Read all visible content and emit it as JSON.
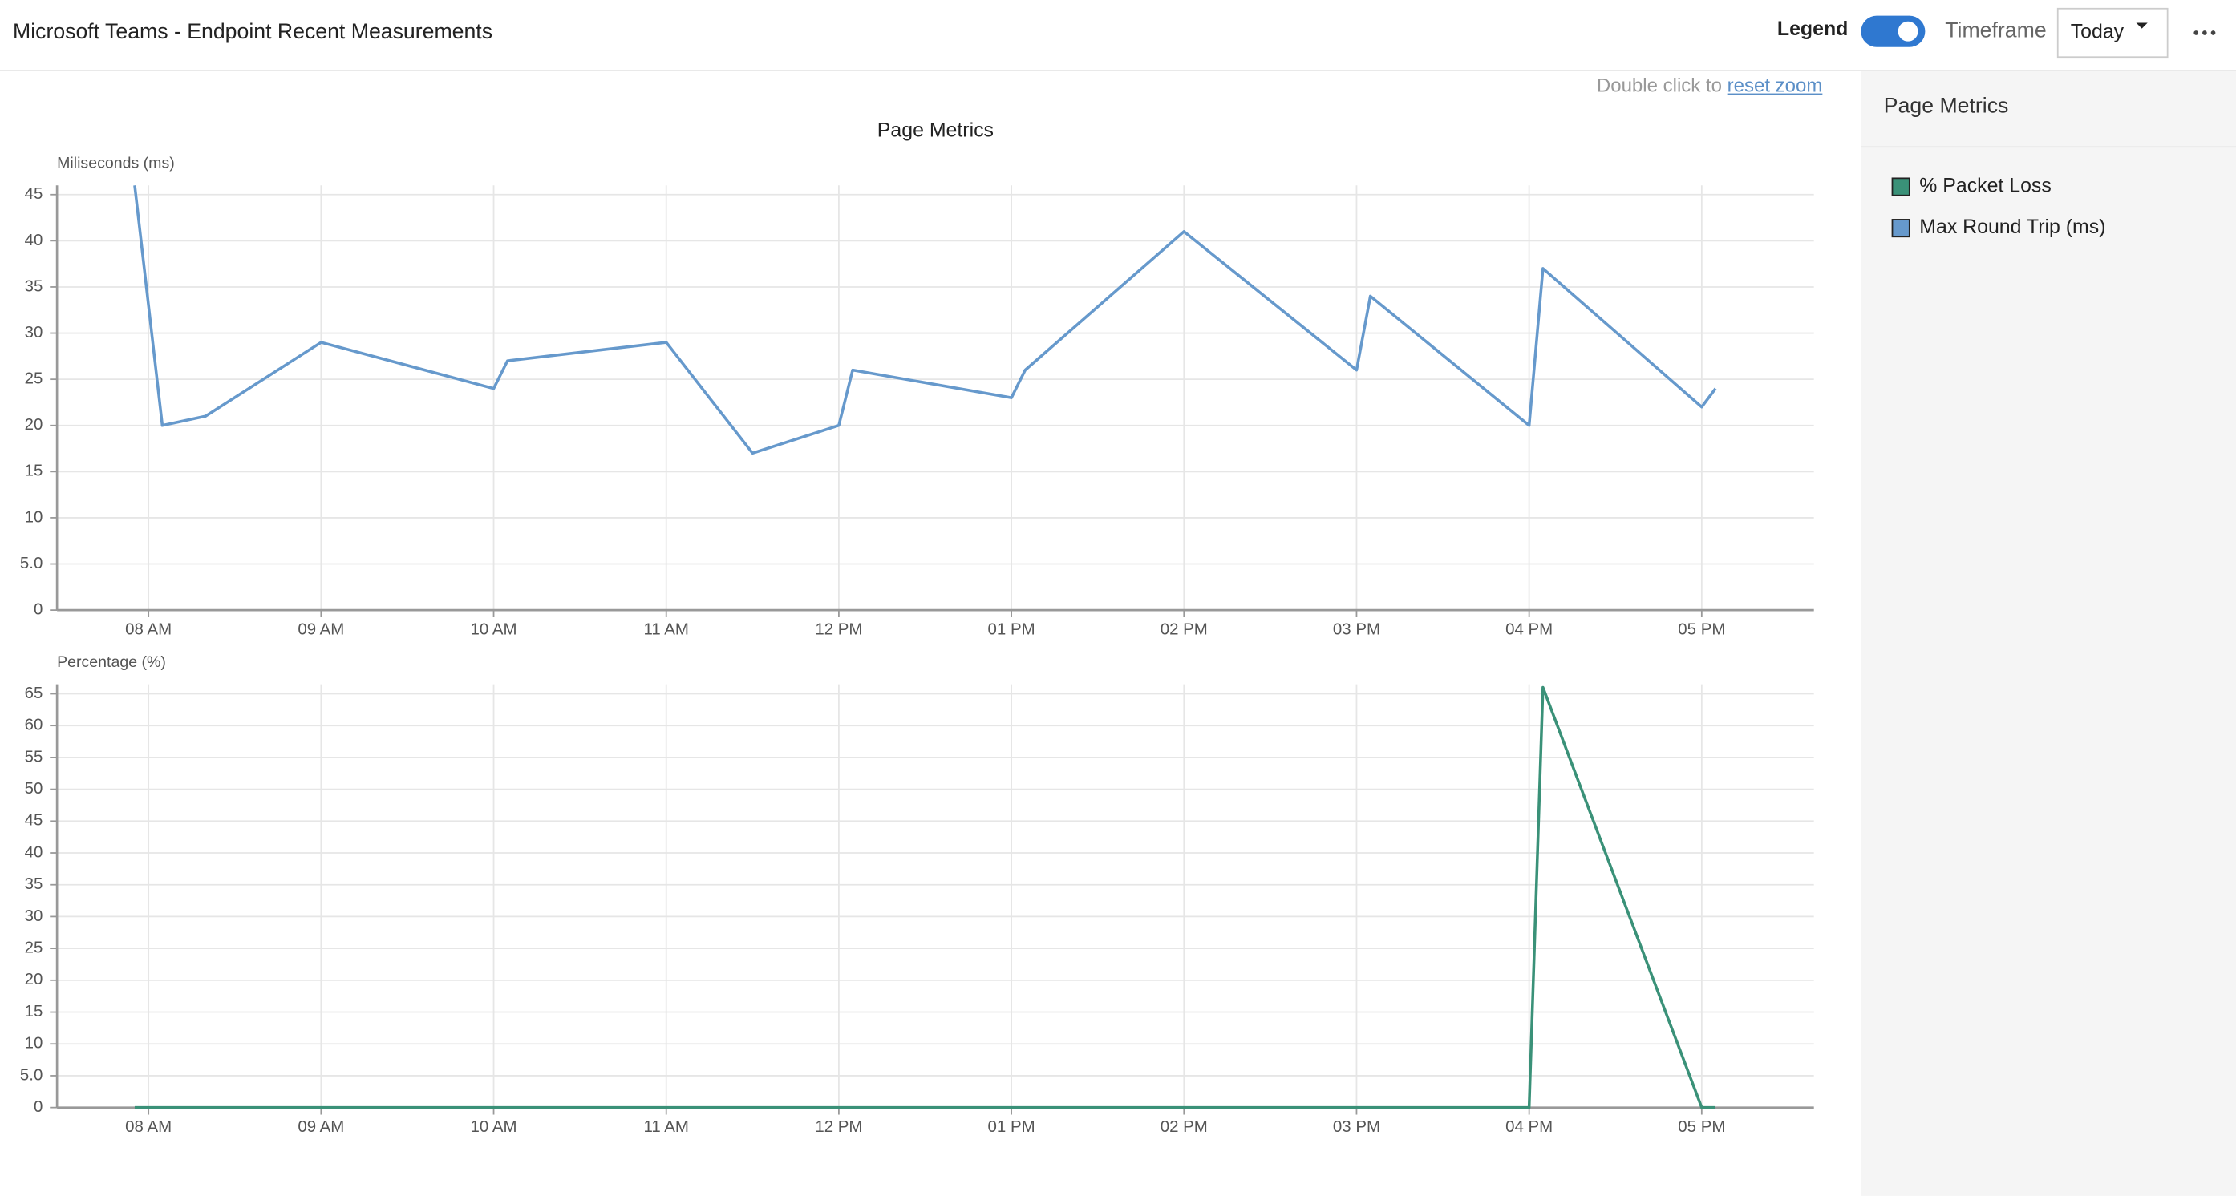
{
  "header": {
    "title": "Microsoft Teams - Endpoint Recent Measurements",
    "legend_label": "Legend",
    "timeframe_label": "Timeframe",
    "timeframe_value": "Today"
  },
  "zoom_hint": {
    "text": "Double click to",
    "link": "reset zoom"
  },
  "sidebar": {
    "title": "Page Metrics"
  },
  "chart_data": [
    {
      "type": "line",
      "title": "Page Metrics",
      "y_label": "Miliseconds (ms)",
      "x": [
        7.92,
        8.08,
        8.33,
        9,
        10,
        10.08,
        11,
        11.5,
        12,
        12.08,
        13,
        13.08,
        14,
        15,
        15.08,
        16,
        16.08,
        17,
        17.08
      ],
      "xlim": [
        7.47,
        17.65
      ],
      "xticks": [
        {
          "value": 8,
          "label": "08 AM"
        },
        {
          "value": 9,
          "label": "09 AM"
        },
        {
          "value": 10,
          "label": "10 AM"
        },
        {
          "value": 11,
          "label": "11 AM"
        },
        {
          "value": 12,
          "label": "12 PM"
        },
        {
          "value": 13,
          "label": "01 PM"
        },
        {
          "value": 14,
          "label": "02 PM"
        },
        {
          "value": 15,
          "label": "03 PM"
        },
        {
          "value": 16,
          "label": "04 PM"
        },
        {
          "value": 17,
          "label": "05 PM"
        }
      ],
      "ylim": [
        0,
        46
      ],
      "yticks": [
        0,
        {
          "value": 5,
          "label": "5.0"
        },
        10,
        15,
        20,
        25,
        30,
        35,
        40,
        45
      ],
      "grid": true,
      "series": [
        {
          "name": "Max Round Trip (ms)",
          "color": "#6699cc",
          "values": [
            46,
            20,
            21,
            29,
            24,
            27,
            29,
            17,
            20,
            26,
            23,
            26,
            41,
            26,
            34,
            20,
            37,
            22,
            24
          ]
        }
      ]
    },
    {
      "type": "line",
      "y_label": "Percentage (%)",
      "x": [
        7.92,
        8.08,
        8.33,
        9,
        10,
        10.08,
        11,
        11.5,
        12,
        12.08,
        13,
        13.08,
        14,
        15,
        15.08,
        16,
        16.08,
        17,
        17.08
      ],
      "xlim": [
        7.47,
        17.65
      ],
      "xticks": [
        {
          "value": 8,
          "label": "08 AM"
        },
        {
          "value": 9,
          "label": "09 AM"
        },
        {
          "value": 10,
          "label": "10 AM"
        },
        {
          "value": 11,
          "label": "11 AM"
        },
        {
          "value": 12,
          "label": "12 PM"
        },
        {
          "value": 13,
          "label": "01 PM"
        },
        {
          "value": 14,
          "label": "02 PM"
        },
        {
          "value": 15,
          "label": "03 PM"
        },
        {
          "value": 16,
          "label": "04 PM"
        },
        {
          "value": 17,
          "label": "05 PM"
        }
      ],
      "ylim": [
        0,
        66.5
      ],
      "yticks": [
        0,
        {
          "value": 5,
          "label": "5.0"
        },
        10,
        15,
        20,
        25,
        30,
        35,
        40,
        45,
        50,
        55,
        60,
        65
      ],
      "grid": true,
      "series": [
        {
          "name": "% Packet Loss",
          "color": "#3a9178",
          "values": [
            0,
            0,
            0,
            0,
            0,
            0,
            0,
            0,
            0,
            0,
            0,
            0,
            0,
            0,
            0,
            0,
            66,
            0,
            0
          ]
        }
      ]
    }
  ]
}
